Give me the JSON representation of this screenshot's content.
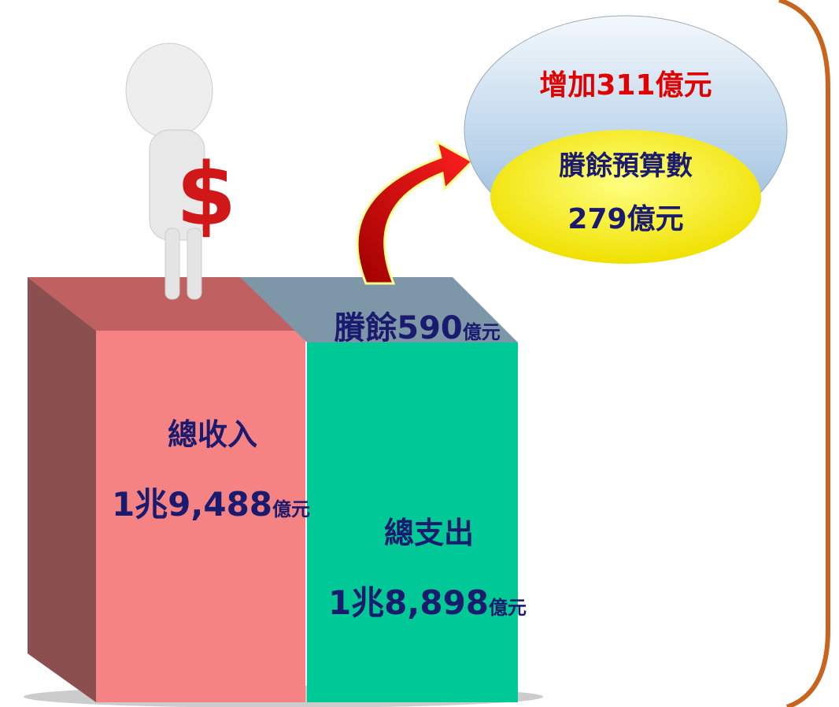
{
  "revenue": {
    "label": "總收入",
    "amount": "1兆9,488",
    "unit": "億元"
  },
  "expenditure": {
    "label": "總支出",
    "amount": "1兆8,898",
    "unit": "億元"
  },
  "surplus": {
    "amount": "賸餘590",
    "unit": "億元"
  },
  "bubble": {
    "increase": "增加311億元",
    "budget_label": "賸餘預算數",
    "budget_value": "279億元"
  }
}
